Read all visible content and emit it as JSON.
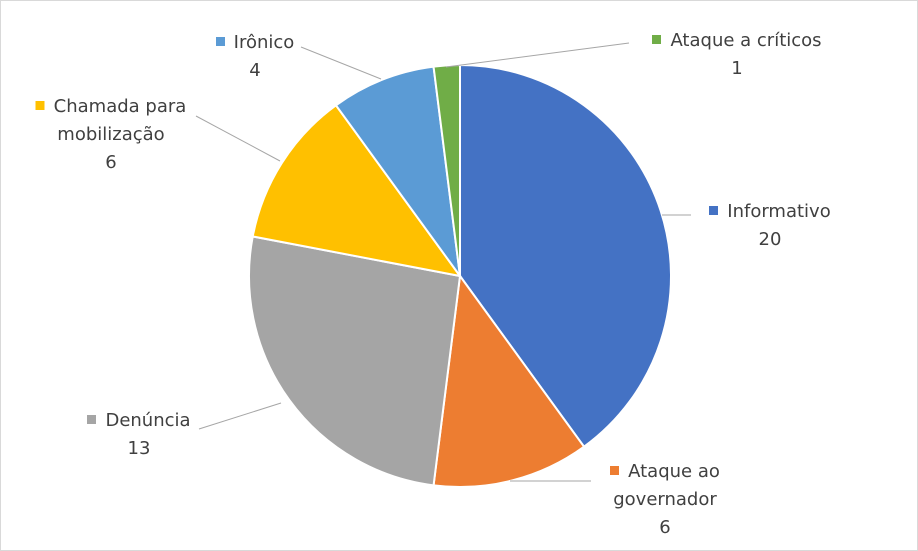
{
  "chart_data": {
    "type": "pie",
    "categories": [
      "Informativo",
      "Ataque ao governador",
      "Denúncia",
      "Chamada para mobilização",
      "Irônico",
      "Ataque a críticos"
    ],
    "values": [
      20,
      6,
      13,
      6,
      4,
      1
    ],
    "colors": [
      "#4472c4",
      "#ed7d31",
      "#a5a5a5",
      "#ffc000",
      "#5b9bd5",
      "#70ad47"
    ]
  }
}
